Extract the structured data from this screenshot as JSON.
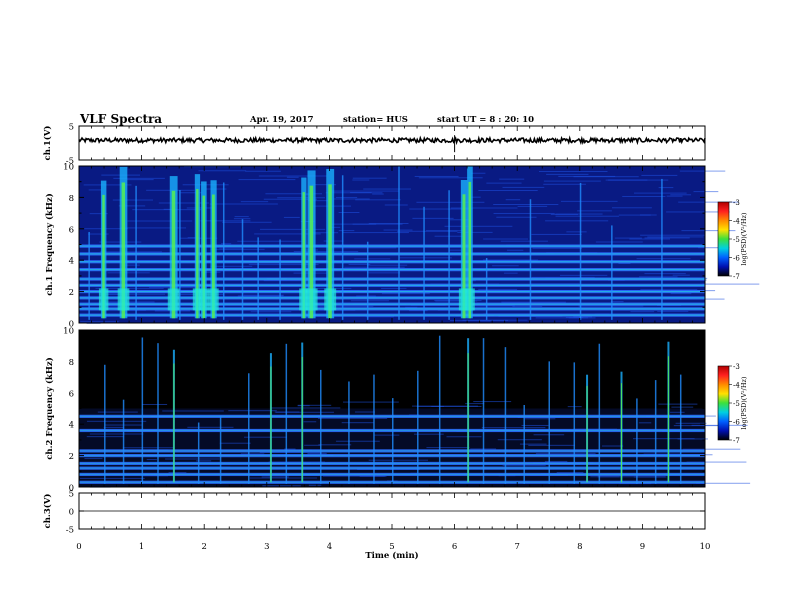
{
  "header": {
    "title": "VLF Spectra",
    "date": "Apr. 19, 2017",
    "station": "station= HUS",
    "start": "start  UT  =   8  : 20: 10"
  },
  "colors": {
    "background": "#000000",
    "base_blue": "#0a1f9a",
    "cyan": "#22e8d8",
    "green": "#55f050",
    "colorbar": [
      "#b00000",
      "#ff2020",
      "#ff8a00",
      "#ffe000",
      "#3ce03c",
      "#00d0e0",
      "#0060ff",
      "#0010b0",
      "#000000"
    ]
  },
  "chart_data": [
    {
      "type": "line",
      "panel": "ch.1(V)",
      "ylabel": "ch.1(V)",
      "ylim": [
        -5,
        5
      ],
      "yticks": [
        "5",
        "-5"
      ],
      "x_range_min": [
        0,
        10
      ],
      "series": [
        {
          "description_level_V": 0.8
        }
      ],
      "spike_time_min": 6.0
    },
    {
      "type": "heatmap",
      "panel": "ch.1 spectrogram",
      "ylabel": "ch.1 Frequency (kHz)",
      "ylim": [
        0,
        10
      ],
      "yticks": [
        "0",
        "2",
        "4",
        "6",
        "8",
        "10"
      ],
      "x_range_min": [
        0,
        10
      ],
      "colorbar": {
        "label": "log(PSD)(V²/Hz)",
        "range": [
          -7,
          -3
        ],
        "ticks": [
          "-3",
          "-4",
          "-5",
          "-6",
          "-7"
        ]
      },
      "bands_kHz": [
        0.5,
        0.9,
        1.2,
        1.6,
        2.0,
        2.4,
        2.8,
        3.4,
        3.9,
        4.4,
        4.9
      ],
      "strong_bursts_min": [
        0.35,
        0.65,
        1.45,
        1.85,
        1.95,
        2.1,
        3.55,
        3.65,
        3.95,
        6.1,
        6.2
      ],
      "weak_bursts_min": [
        0.15,
        0.9,
        1.6,
        2.3,
        2.6,
        2.85,
        3.2,
        4.2,
        4.6,
        5.1,
        5.5,
        5.9,
        6.5,
        7.2,
        8.0,
        8.5,
        9.3
      ]
    },
    {
      "type": "heatmap",
      "panel": "ch.2 spectrogram",
      "ylabel": "ch.2 Frequency (kHz)",
      "ylim": [
        0,
        10
      ],
      "yticks": [
        "0",
        "2",
        "4",
        "6",
        "8",
        "10"
      ],
      "x_range_min": [
        0,
        10
      ],
      "colorbar": {
        "label": "log(PSD)(V²/Hz)",
        "range": [
          -7,
          -3
        ],
        "ticks": [
          "-3",
          "-4",
          "-5",
          "-6",
          "-7"
        ]
      },
      "bands_kHz": [
        0.3,
        0.8,
        1.2,
        1.5,
        2.0,
        2.3,
        3.6,
        4.5
      ],
      "strong_bursts_min": [
        1.5,
        3.05,
        3.55,
        6.2,
        8.1,
        8.65,
        9.4
      ],
      "weak_bursts_min": [
        0.4,
        0.7,
        1.0,
        1.25,
        1.9,
        2.25,
        2.7,
        3.3,
        3.85,
        4.3,
        4.7,
        5.0,
        5.4,
        5.75,
        6.45,
        6.8,
        7.1,
        7.5,
        7.9,
        8.3,
        8.9,
        9.2,
        9.6
      ]
    },
    {
      "type": "line",
      "panel": "ch.3(V)",
      "ylabel": "ch.3(V)",
      "ylim": [
        -5,
        5
      ],
      "yticks": [
        "5",
        "0",
        "-5"
      ],
      "x_range_min": [
        0,
        10
      ],
      "series": [
        {
          "description_level_V": 0.0
        }
      ]
    }
  ],
  "xaxis": {
    "label": "Time (min)",
    "ticks": [
      "0",
      "1",
      "2",
      "3",
      "4",
      "5",
      "6",
      "7",
      "8",
      "9",
      "10"
    ]
  }
}
